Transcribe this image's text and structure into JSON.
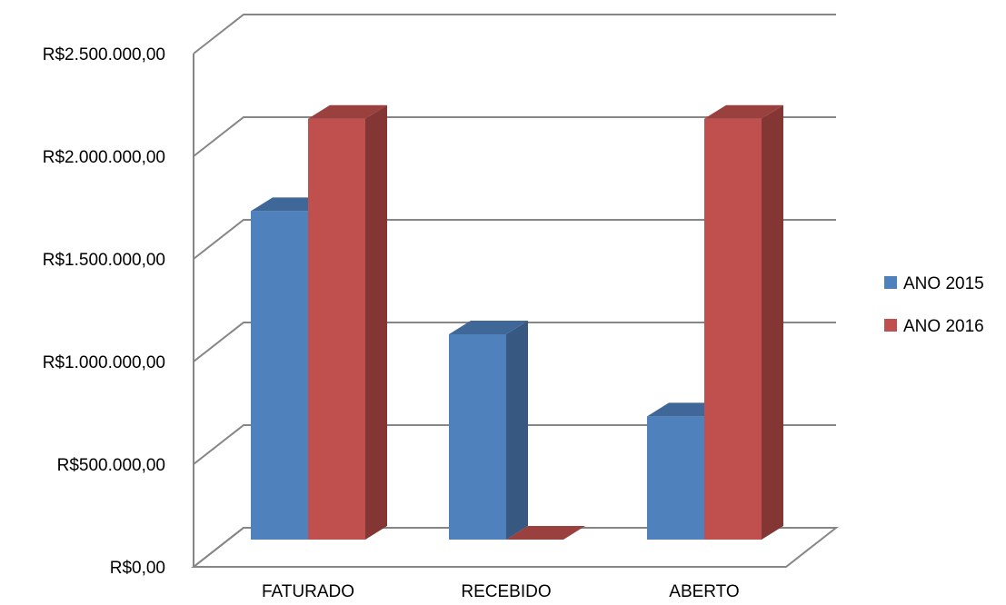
{
  "chart_data": {
    "type": "bar",
    "title": "",
    "xlabel": "",
    "ylabel": "",
    "categories": [
      "FATURADO",
      "RECEBIDO",
      "ABERTO"
    ],
    "series": [
      {
        "name": "ANO 2015",
        "color": "#4F81BD",
        "values": [
          1600000,
          1000000,
          600000
        ]
      },
      {
        "name": "ANO 2016",
        "color": "#C0504D",
        "values": [
          2050000,
          0,
          2050000
        ]
      }
    ],
    "ylim": [
      0,
      2500000
    ],
    "yticks": [
      0,
      500000,
      1000000,
      1500000,
      2000000,
      2500000
    ],
    "ytick_labels": [
      "R$0,00",
      "R$500.000,00",
      "R$1.000.000,00",
      "R$1.500.000,00",
      "R$2.000.000,00",
      "R$2.500.000,00"
    ],
    "grid": true,
    "legend_position": "right",
    "three_d": true
  }
}
